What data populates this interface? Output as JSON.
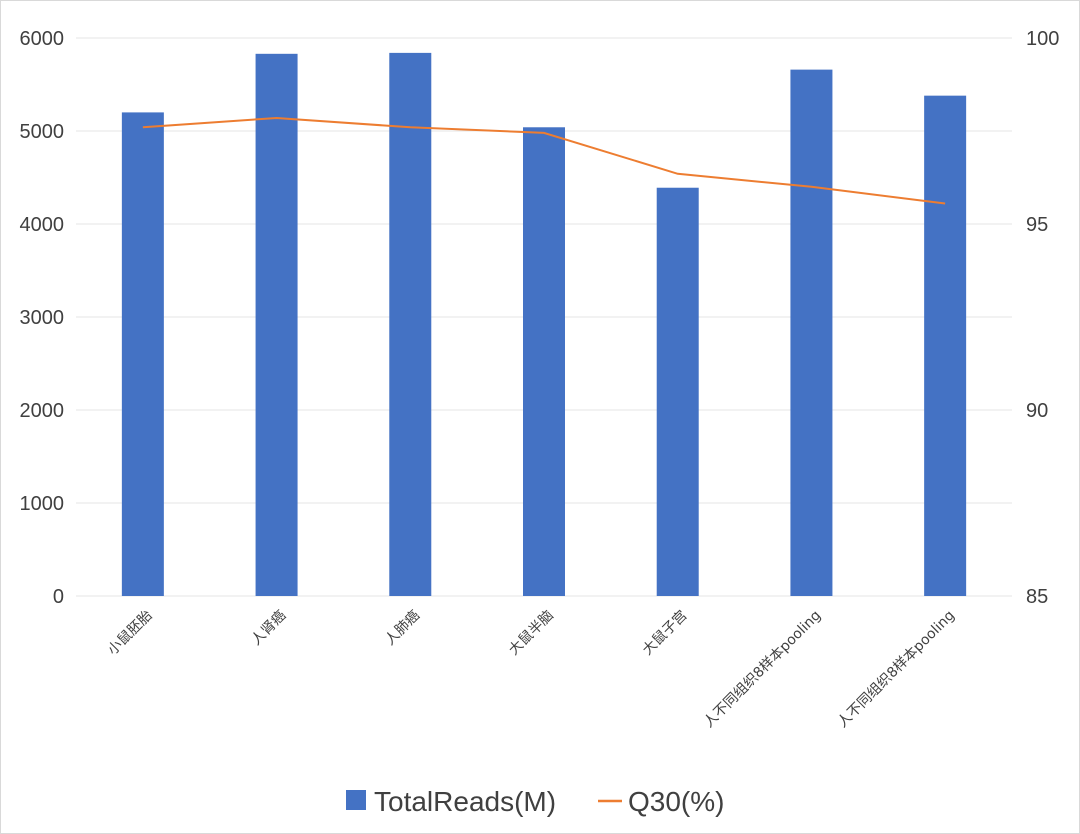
{
  "chart_data": {
    "type": "bar+line",
    "categories": [
      "小鼠胚胎",
      "人肾癌",
      "人肺癌",
      "大鼠半脑",
      "大鼠子宫",
      "人不同组织8样本pooling",
      "人不同组织8样本pooling"
    ],
    "series": [
      {
        "name": "TotalReads(M)",
        "type": "bar",
        "axis": "left",
        "color": "#4472C4",
        "values": [
          5200,
          5830,
          5840,
          5040,
          4390,
          5660,
          5380
        ]
      },
      {
        "name": "Q30(%)",
        "type": "line",
        "axis": "right",
        "color": "#ED7D31",
        "values": [
          97.6,
          97.85,
          97.6,
          97.45,
          96.35,
          96.0,
          95.55
        ]
      }
    ],
    "y_left": {
      "ylim": [
        0,
        6000
      ],
      "ticks": [
        0,
        1000,
        2000,
        3000,
        4000,
        5000,
        6000
      ]
    },
    "y_right": {
      "ylim": [
        85,
        100
      ],
      "ticks": [
        85,
        90,
        95,
        100
      ]
    },
    "grid": true,
    "legend_position": "bottom"
  }
}
